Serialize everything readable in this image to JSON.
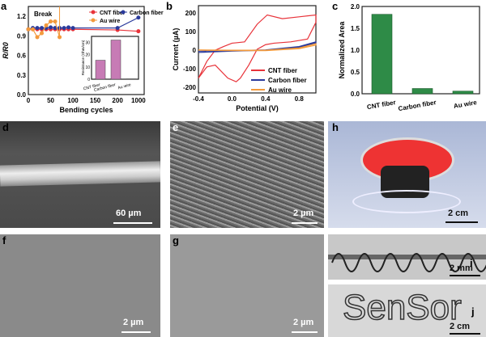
{
  "panel_labels": [
    "a",
    "b",
    "c",
    "d",
    "e",
    "f",
    "g",
    "h",
    "i",
    "j"
  ],
  "scale_bars": {
    "d": "60 µm",
    "e": "2 µm",
    "f": "2 µm",
    "g": "2 µm",
    "h": "2 cm",
    "i": "2 mm",
    "j": "2 cm"
  },
  "colors": {
    "cnt": "#e8333a",
    "carbon": "#2a3a9c",
    "au": "#f39a3c",
    "inset_bar": "#c77bb5",
    "green_bar": "#2e8b47"
  },
  "chart_data": [
    {
      "type": "line",
      "panel": "a",
      "xlabel": "Bending cycles",
      "ylabel": "R/R0",
      "ylim": [
        0,
        1.35
      ],
      "xticks": [
        "0",
        "50",
        "100",
        "150",
        "200",
        "1000"
      ],
      "yticks": [
        "0.0",
        "0.3",
        "0.6",
        "0.9",
        "1.2"
      ],
      "annotation": "Break",
      "legend": "top-right",
      "series": [
        {
          "name": "CNT fiber",
          "x": [
            0,
            10,
            20,
            30,
            40,
            50,
            60,
            70,
            80,
            90,
            100,
            200,
            1000
          ],
          "y": [
            1.0,
            1.0,
            1.0,
            1.0,
            1.0,
            1.0,
            1.0,
            1.0,
            1.0,
            1.0,
            1.0,
            0.99,
            0.97
          ]
        },
        {
          "name": "Carbon fiber",
          "x": [
            0,
            10,
            20,
            30,
            40,
            50,
            60,
            70,
            80,
            90,
            100,
            200,
            1000
          ],
          "y": [
            1.0,
            1.02,
            1.02,
            1.02,
            1.02,
            1.03,
            1.02,
            1.02,
            1.02,
            1.03,
            1.02,
            1.02,
            1.18
          ]
        },
        {
          "name": "Au wire",
          "x": [
            0,
            10,
            20,
            30,
            40,
            50,
            60,
            70
          ],
          "y": [
            1.0,
            1.0,
            0.88,
            0.94,
            1.06,
            1.12,
            1.12,
            0.88
          ]
        }
      ],
      "inset": {
        "type": "bar",
        "ylabel": "Resistance (Ohm/cm)",
        "categories": [
          "CNT fiber",
          "Carbon fiber",
          "Au wire"
        ],
        "values": [
          15.5,
          32,
          0.3
        ],
        "ylim": [
          0,
          35
        ],
        "yticks": [
          "0",
          "10",
          "20",
          "30"
        ]
      }
    },
    {
      "type": "line",
      "panel": "b",
      "xlabel": "Potential (V)",
      "ylabel": "Current (µA)",
      "xlim": [
        -0.4,
        1.0
      ],
      "ylim": [
        -230,
        240
      ],
      "xticks": [
        "-0.4",
        "0.0",
        "0.4",
        "0.8"
      ],
      "yticks": [
        "-200",
        "-100",
        "0",
        "100",
        "200"
      ],
      "legend": "bottom-right",
      "series": [
        {
          "name": "CNT fiber",
          "x": [
            -0.4,
            -0.3,
            -0.2,
            -0.1,
            0.0,
            0.05,
            0.15,
            0.3,
            0.42,
            0.6,
            0.8,
            1.0,
            1.0,
            0.9,
            0.7,
            0.5,
            0.4,
            0.3,
            0.2,
            0.1,
            0.05,
            -0.05,
            -0.2,
            -0.3,
            -0.4
          ],
          "y": [
            -150,
            -60,
            0,
            20,
            38,
            40,
            45,
            140,
            190,
            170,
            180,
            190,
            150,
            60,
            45,
            38,
            30,
            5,
            -80,
            -150,
            -170,
            -150,
            -80,
            -90,
            -150
          ]
        },
        {
          "name": "Carbon fiber",
          "x": [
            -0.4,
            0.0,
            0.4,
            0.8,
            1.0,
            1.0,
            0.8,
            0.4,
            0.0,
            -0.4
          ],
          "y": [
            -5,
            -2,
            2,
            20,
            45,
            40,
            15,
            0,
            -5,
            -12
          ]
        },
        {
          "name": "Au wire",
          "x": [
            -0.4,
            0.0,
            0.4,
            0.8,
            1.0,
            1.0,
            0.8,
            0.4,
            0.0,
            -0.4
          ],
          "y": [
            2,
            0,
            0,
            12,
            35,
            28,
            8,
            -2,
            -2,
            0
          ]
        }
      ]
    },
    {
      "type": "bar",
      "panel": "c",
      "ylabel": "Normalized Area",
      "ylim": [
        0,
        2.0
      ],
      "yticks": [
        "0.0",
        "0.5",
        "1.0",
        "1.5",
        "2.0"
      ],
      "categories": [
        "CNT fiber",
        "Carbon fiber",
        "Au wire"
      ],
      "values": [
        1.82,
        0.12,
        0.06
      ]
    }
  ]
}
